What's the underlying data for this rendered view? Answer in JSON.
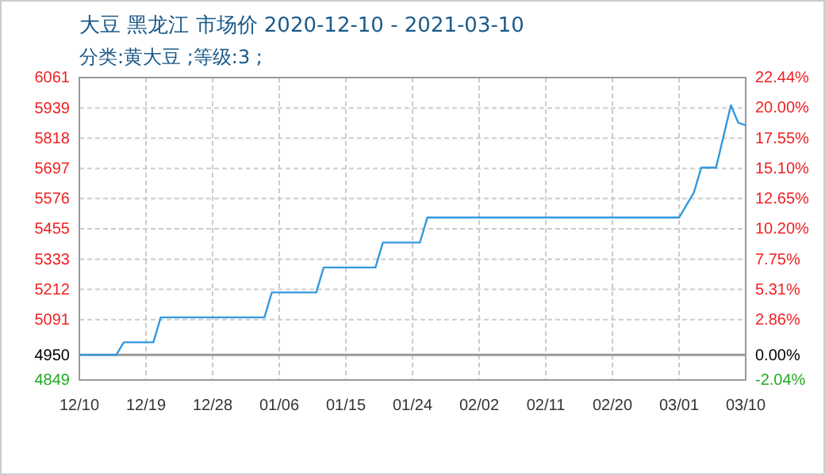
{
  "chart_data": {
    "type": "line",
    "title": "大豆 黑龙江 市场价 2020-12-10 - 2021-03-10",
    "subtitle": "分类:黄大豆 ;等级:3 ;",
    "x": [
      "2020-12-10",
      "2020-12-15",
      "2020-12-16",
      "2020-12-20",
      "2020-12-21",
      "2021-01-04",
      "2021-01-05",
      "2021-01-11",
      "2021-01-12",
      "2021-01-19",
      "2021-01-20",
      "2021-01-25",
      "2021-01-26",
      "2021-03-01",
      "2021-03-03",
      "2021-03-04",
      "2021-03-06",
      "2021-03-08",
      "2021-03-09",
      "2021-03-10"
    ],
    "series": [
      {
        "color": "#3399dd",
        "values": [
          4950,
          4950,
          5000,
          5000,
          5100,
          5100,
          5200,
          5200,
          5300,
          5300,
          5400,
          5400,
          5500,
          5500,
          5600,
          5700,
          5700,
          5950,
          5880,
          5870
        ]
      }
    ],
    "xlim": [
      "2020-12-10",
      "2021-03-10"
    ],
    "xticks": [
      {
        "value": "2020-12-10",
        "label": "12/10"
      },
      {
        "value": "2020-12-19",
        "label": "12/19"
      },
      {
        "value": "2020-12-28",
        "label": "12/28"
      },
      {
        "value": "2021-01-06",
        "label": "01/06"
      },
      {
        "value": "2021-01-15",
        "label": "01/15"
      },
      {
        "value": "2021-01-24",
        "label": "01/24"
      },
      {
        "value": "2021-02-02",
        "label": "02/02"
      },
      {
        "value": "2021-02-11",
        "label": "02/11"
      },
      {
        "value": "2021-02-20",
        "label": "02/20"
      },
      {
        "value": "2021-03-01",
        "label": "03/01"
      },
      {
        "value": "2021-03-10",
        "label": "03/10"
      }
    ],
    "ylim": [
      4849,
      6061
    ],
    "yticks": [
      4849,
      4950,
      5091,
      5212,
      5333,
      5455,
      5576,
      5697,
      5818,
      5939,
      6061
    ],
    "y2lim": [
      -2.04,
      22.44
    ],
    "y2ticks": [
      {
        "value": -2.04,
        "label": "-2.04%"
      },
      {
        "value": 0,
        "label": "0.00%"
      },
      {
        "value": 2.86,
        "label": "2.86%"
      },
      {
        "value": 5.31,
        "label": "5.31%"
      },
      {
        "value": 7.75,
        "label": "7.75%"
      },
      {
        "value": 10.2,
        "label": "10.20%"
      },
      {
        "value": 12.65,
        "label": "12.65%"
      },
      {
        "value": 15.1,
        "label": "15.10%"
      },
      {
        "value": 17.55,
        "label": "17.55%"
      },
      {
        "value": 20,
        "label": "20.00%"
      },
      {
        "value": 22.44,
        "label": "22.44%"
      }
    ],
    "grid": true,
    "marker": "none",
    "line_style": "solid"
  }
}
